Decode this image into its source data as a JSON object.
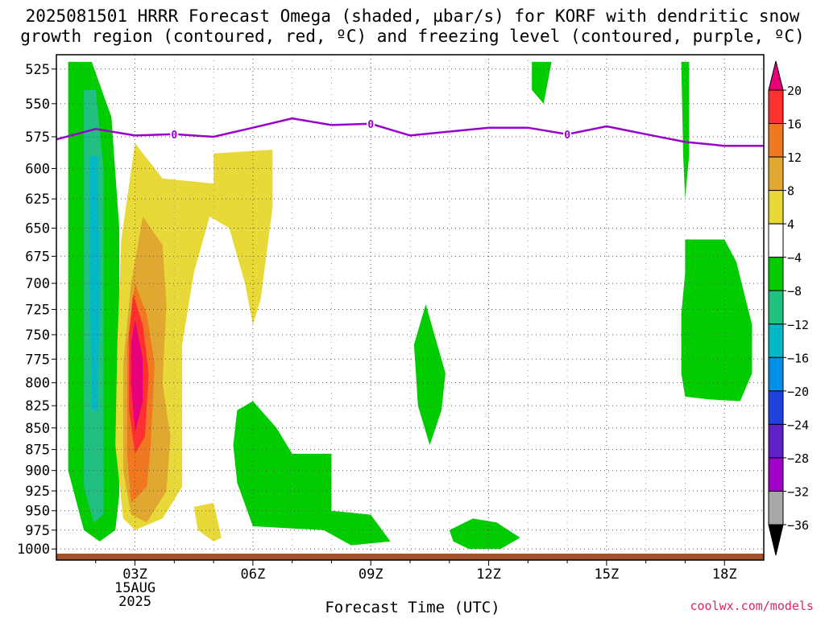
{
  "title_line1": "2025081501 HRRR Forecast Omega (shaded, µbar/s) for KORF with dendritic snow",
  "title_line2": "growth region (contoured, red, ºC) and freezing level (contoured, purple, ºC)",
  "credit": "coolwx.com/models",
  "chart_data": {
    "type": "heatmap",
    "title": "2025081501 HRRR Forecast Omega (shaded, µbar/s) for KORF with dendritic snow growth region (contoured, red, ºC) and freezing level (contoured, purple, ºC)",
    "xlabel": "Forecast Time (UTC)",
    "ylabel": "",
    "x_ticks": [
      {
        "hour": 3,
        "label": "03Z",
        "sub1": "15AUG",
        "sub2": "2025"
      },
      {
        "hour": 6,
        "label": "06Z"
      },
      {
        "hour": 9,
        "label": "09Z"
      },
      {
        "hour": 12,
        "label": "12Z"
      },
      {
        "hour": 15,
        "label": "15Z"
      },
      {
        "hour": 18,
        "label": "18Z"
      }
    ],
    "xlim": [
      1,
      19
    ],
    "y_ticks": [
      525,
      550,
      575,
      600,
      625,
      650,
      675,
      700,
      725,
      750,
      775,
      800,
      825,
      850,
      875,
      900,
      925,
      950,
      975,
      1000
    ],
    "ylim": [
      515,
      1015
    ],
    "y_scale": "log-pressure",
    "grid": true,
    "colorbar": {
      "levels": [
        "20",
        "16",
        "12",
        "8",
        "4",
        "−4",
        "−8",
        "−12",
        "−16",
        "−20",
        "−24",
        "−28",
        "−32",
        "−36"
      ],
      "colors": [
        "#e8007a",
        "#ff3030",
        "#f07820",
        "#e0a830",
        "#e8d838",
        "#ffffff",
        "#00cc00",
        "#20c080",
        "#00b8c8",
        "#0090e8",
        "#2040e0",
        "#6020c8",
        "#a000c8",
        "#a8a8a8",
        "#000000"
      ],
      "top_arrow_color": "#e8007a",
      "bottom_arrow_color": "#000000"
    },
    "freezing_level": {
      "color": "#9900cc",
      "label": "0",
      "points": [
        [
          1,
          577
        ],
        [
          2,
          569
        ],
        [
          3,
          574
        ],
        [
          4,
          573
        ],
        [
          5,
          575
        ],
        [
          6,
          568
        ],
        [
          7,
          561
        ],
        [
          8,
          566
        ],
        [
          9,
          565
        ],
        [
          10,
          574
        ],
        [
          11,
          571
        ],
        [
          12,
          568
        ],
        [
          13,
          568
        ],
        [
          14,
          573
        ],
        [
          15,
          567
        ],
        [
          16,
          573
        ],
        [
          17,
          579
        ],
        [
          18,
          582
        ],
        [
          19,
          582
        ]
      ],
      "label_positions": [
        [
          4,
          573
        ],
        [
          9,
          565
        ],
        [
          14,
          573
        ]
      ]
    },
    "surface_color": "#a0522d",
    "omega_regions": [
      {
        "level": "-4",
        "color": "#00cc00",
        "points": [
          [
            1.3,
            520
          ],
          [
            1.9,
            520
          ],
          [
            2.4,
            560
          ],
          [
            2.6,
            650
          ],
          [
            2.6,
            800
          ],
          [
            2.6,
            930
          ],
          [
            2.5,
            975
          ],
          [
            2.1,
            990
          ],
          [
            1.7,
            975
          ],
          [
            1.3,
            900
          ],
          [
            1.3,
            760
          ],
          [
            1.3,
            600
          ]
        ]
      },
      {
        "level": "-8",
        "color": "#20c080",
        "points": [
          [
            1.7,
            540
          ],
          [
            2.0,
            540
          ],
          [
            2.2,
            600
          ],
          [
            2.2,
            800
          ],
          [
            2.2,
            955
          ],
          [
            1.95,
            965
          ],
          [
            1.7,
            920
          ],
          [
            1.7,
            700
          ]
        ]
      },
      {
        "level": "-12",
        "color": "#00b8c8",
        "points": [
          [
            1.85,
            590
          ],
          [
            2.05,
            590
          ],
          [
            2.1,
            700
          ],
          [
            2.05,
            830
          ],
          [
            1.9,
            830
          ],
          [
            1.85,
            700
          ]
        ]
      },
      {
        "level": "4",
        "color": "#e8d838",
        "points": [
          [
            3,
            580
          ],
          [
            3.7,
            608
          ],
          [
            4.9,
            612
          ],
          [
            5,
            612
          ],
          [
            5,
            588
          ],
          [
            6.5,
            585
          ],
          [
            6.5,
            632
          ],
          [
            6.2,
            715
          ],
          [
            6.0,
            740
          ],
          [
            5.8,
            700
          ],
          [
            5.4,
            650
          ],
          [
            4.9,
            640
          ],
          [
            4.5,
            690
          ],
          [
            4.2,
            760
          ],
          [
            4.2,
            840
          ],
          [
            4.2,
            920
          ],
          [
            3.7,
            960
          ],
          [
            3.0,
            975
          ],
          [
            2.7,
            960
          ],
          [
            2.5,
            870
          ],
          [
            2.55,
            760
          ],
          [
            2.65,
            660
          ]
        ]
      },
      {
        "level": "4",
        "color": "#e8d838",
        "points": [
          [
            4.5,
            945
          ],
          [
            5.0,
            940
          ],
          [
            5.2,
            985
          ],
          [
            5.0,
            990
          ],
          [
            4.6,
            975
          ]
        ]
      },
      {
        "level": "8",
        "color": "#e0a830",
        "points": [
          [
            3.2,
            640
          ],
          [
            3.7,
            665
          ],
          [
            3.8,
            720
          ],
          [
            3.7,
            800
          ],
          [
            3.9,
            860
          ],
          [
            3.8,
            925
          ],
          [
            3.3,
            965
          ],
          [
            2.9,
            955
          ],
          [
            2.7,
            900
          ],
          [
            2.7,
            780
          ],
          [
            2.9,
            700
          ]
        ]
      },
      {
        "level": "12",
        "color": "#f07820",
        "points": [
          [
            3.0,
            700
          ],
          [
            3.3,
            730
          ],
          [
            3.5,
            780
          ],
          [
            3.4,
            870
          ],
          [
            3.3,
            920
          ],
          [
            2.9,
            940
          ],
          [
            2.8,
            880
          ],
          [
            2.8,
            760
          ]
        ]
      },
      {
        "level": "16",
        "color": "#ff3030",
        "points": [
          [
            2.95,
            710
          ],
          [
            3.2,
            740
          ],
          [
            3.35,
            790
          ],
          [
            3.25,
            860
          ],
          [
            3.0,
            880
          ],
          [
            2.85,
            830
          ],
          [
            2.85,
            750
          ]
        ]
      },
      {
        "level": "20",
        "color": "#e8007a",
        "points": [
          [
            3.0,
            735
          ],
          [
            3.2,
            775
          ],
          [
            3.2,
            820
          ],
          [
            3.0,
            855
          ],
          [
            2.9,
            800
          ],
          [
            2.9,
            760
          ]
        ]
      },
      {
        "level": "-4",
        "color": "#00cc00",
        "points": [
          [
            6.0,
            820
          ],
          [
            6.6,
            850
          ],
          [
            7.0,
            880
          ],
          [
            8.0,
            880
          ],
          [
            8.0,
            950
          ],
          [
            9.0,
            955
          ],
          [
            9.5,
            990
          ],
          [
            8.5,
            995
          ],
          [
            7.8,
            975
          ],
          [
            6.0,
            970
          ],
          [
            5.6,
            915
          ],
          [
            5.5,
            870
          ],
          [
            5.6,
            830
          ]
        ]
      },
      {
        "level": "-4",
        "color": "#00cc00",
        "points": [
          [
            10.4,
            720
          ],
          [
            10.9,
            790
          ],
          [
            10.8,
            830
          ],
          [
            10.5,
            870
          ],
          [
            10.2,
            825
          ],
          [
            10.1,
            760
          ]
        ]
      },
      {
        "level": "-4",
        "color": "#00cc00",
        "points": [
          [
            11.0,
            975
          ],
          [
            11.6,
            960
          ],
          [
            12.2,
            965
          ],
          [
            12.8,
            985
          ],
          [
            12.3,
            1000
          ],
          [
            11.5,
            1000
          ],
          [
            11.1,
            990
          ]
        ]
      },
      {
        "level": "-4",
        "color": "#00cc00",
        "points": [
          [
            13.1,
            520
          ],
          [
            13.6,
            520
          ],
          [
            13.4,
            550
          ],
          [
            13.1,
            540
          ]
        ]
      },
      {
        "level": "-4",
        "color": "#00cc00",
        "points": [
          [
            16.9,
            520
          ],
          [
            17.1,
            520
          ],
          [
            17.1,
            590
          ],
          [
            17.0,
            625
          ],
          [
            16.95,
            590
          ]
        ]
      },
      {
        "level": "-4",
        "color": "#00cc00",
        "points": [
          [
            17.0,
            660
          ],
          [
            18.0,
            660
          ],
          [
            18.3,
            680
          ],
          [
            18.7,
            740
          ],
          [
            18.7,
            790
          ],
          [
            18.4,
            820
          ],
          [
            17.6,
            818
          ],
          [
            17.0,
            815
          ],
          [
            16.9,
            790
          ],
          [
            16.9,
            730
          ],
          [
            17.0,
            690
          ]
        ]
      }
    ]
  }
}
